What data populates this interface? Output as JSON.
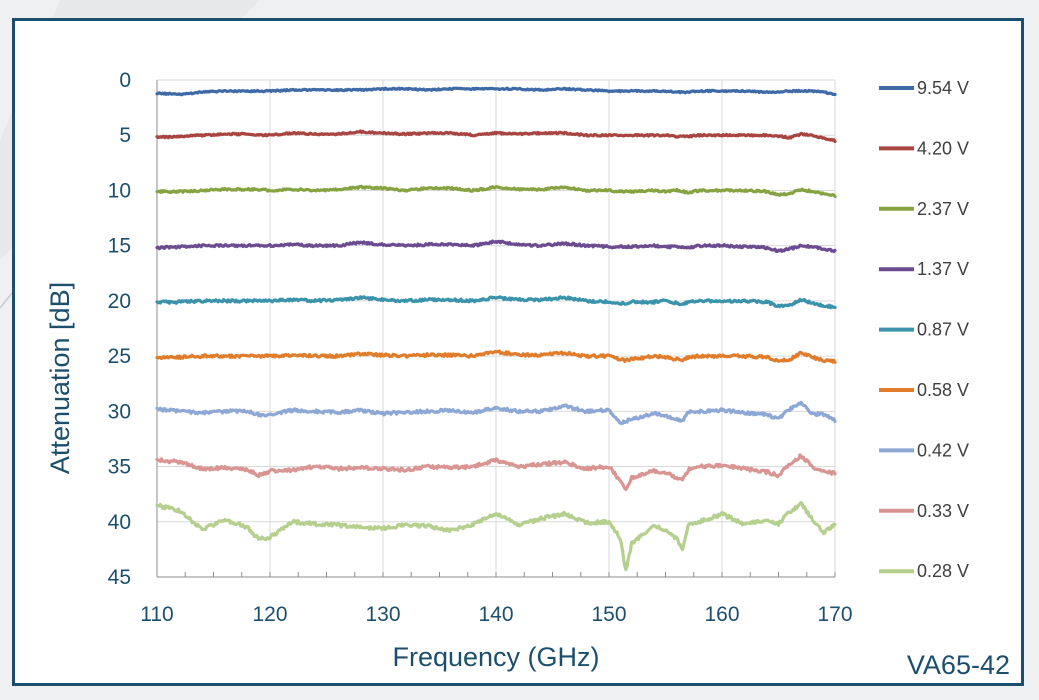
{
  "chart_data": {
    "type": "line",
    "title": "",
    "xlabel": "Frequency (GHz)",
    "ylabel": "Attenuation [dB]",
    "xlim": [
      110,
      170
    ],
    "ylim": [
      0,
      45
    ],
    "y_inverted": true,
    "x_ticks": [
      110,
      120,
      130,
      140,
      150,
      160,
      170
    ],
    "y_ticks": [
      0,
      5,
      10,
      15,
      20,
      25,
      30,
      35,
      40,
      45
    ],
    "grid": true,
    "legend_position": "right",
    "x": [
      110,
      112,
      114,
      116,
      118,
      119,
      120,
      122,
      124,
      126,
      128,
      130,
      132,
      134,
      136,
      138,
      140,
      142,
      144,
      146,
      148,
      150,
      151,
      151.5,
      152,
      154,
      155,
      156,
      156.5,
      157,
      158,
      160,
      162,
      164,
      165,
      166,
      167,
      168,
      169,
      170
    ],
    "series": [
      {
        "name": "9.54 V",
        "color": "#3e6aa6",
        "values": [
          1.2,
          1.3,
          1.1,
          1.0,
          1.0,
          1.0,
          1.0,
          0.9,
          0.9,
          0.9,
          0.9,
          0.8,
          0.8,
          0.9,
          0.8,
          0.8,
          0.8,
          0.8,
          0.9,
          0.8,
          0.9,
          1.0,
          1.0,
          1.0,
          1.0,
          1.0,
          1.0,
          1.1,
          1.1,
          1.1,
          1.0,
          1.0,
          1.0,
          1.1,
          1.1,
          1.0,
          1.0,
          1.0,
          1.1,
          1.3
        ]
      },
      {
        "name": "4.20 V",
        "color": "#a84541",
        "values": [
          5.2,
          5.1,
          5.0,
          4.9,
          4.9,
          5.0,
          5.0,
          4.8,
          4.9,
          4.9,
          4.7,
          4.8,
          4.9,
          4.8,
          4.8,
          5.0,
          4.8,
          4.9,
          4.8,
          4.8,
          5.0,
          5.0,
          5.0,
          5.0,
          5.0,
          5.0,
          5.0,
          5.1,
          5.1,
          5.1,
          5.0,
          5.0,
          5.0,
          5.0,
          5.1,
          5.2,
          4.9,
          5.0,
          5.3,
          5.5
        ]
      },
      {
        "name": "2.37 V",
        "color": "#86a342",
        "values": [
          10.1,
          10.1,
          10.0,
          9.9,
          9.9,
          9.9,
          10.0,
          9.9,
          10.0,
          9.9,
          9.7,
          9.8,
          10.0,
          9.8,
          9.8,
          10.0,
          9.7,
          9.9,
          9.9,
          9.7,
          10.0,
          10.0,
          10.1,
          10.1,
          10.1,
          10.0,
          10.1,
          10.0,
          10.1,
          10.2,
          10.0,
          10.0,
          10.0,
          10.1,
          10.4,
          10.3,
          9.9,
          10.1,
          10.3,
          10.5
        ]
      },
      {
        "name": "1.37 V",
        "color": "#6c4b91",
        "values": [
          15.2,
          15.1,
          15.0,
          15.0,
          15.0,
          15.0,
          15.0,
          14.9,
          15.0,
          15.0,
          14.7,
          14.9,
          15.0,
          14.9,
          14.9,
          15.0,
          14.6,
          14.9,
          15.0,
          14.8,
          15.0,
          15.1,
          15.1,
          15.1,
          15.1,
          15.0,
          15.1,
          15.1,
          15.1,
          15.2,
          15.0,
          15.0,
          15.1,
          15.2,
          15.5,
          15.3,
          15.0,
          15.1,
          15.3,
          15.5
        ]
      },
      {
        "name": "0.87 V",
        "color": "#3a93ab",
        "values": [
          20.1,
          20.1,
          20.0,
          20.0,
          20.0,
          20.0,
          20.0,
          19.9,
          20.0,
          19.9,
          19.7,
          19.9,
          20.0,
          19.9,
          19.9,
          20.0,
          19.7,
          19.9,
          19.9,
          19.7,
          20.0,
          20.1,
          20.2,
          20.2,
          20.1,
          20.1,
          20.0,
          20.2,
          20.3,
          20.1,
          20.0,
          20.0,
          20.0,
          20.1,
          20.5,
          20.4,
          19.9,
          20.2,
          20.4,
          20.6
        ]
      },
      {
        "name": "0.58 V",
        "color": "#e07c2a",
        "values": [
          25.1,
          25.1,
          25.0,
          25.0,
          25.0,
          25.0,
          25.0,
          24.9,
          25.0,
          25.0,
          24.8,
          24.9,
          25.0,
          24.9,
          24.9,
          25.0,
          24.6,
          24.9,
          24.9,
          24.7,
          25.0,
          25.0,
          25.3,
          25.4,
          25.3,
          25.0,
          25.1,
          25.3,
          25.4,
          25.1,
          25.0,
          25.0,
          25.0,
          25.1,
          25.4,
          25.3,
          24.7,
          25.1,
          25.4,
          25.5
        ]
      },
      {
        "name": "0.42 V",
        "color": "#8ea8d6",
        "values": [
          29.8,
          30.0,
          30.1,
          30.0,
          30.0,
          30.3,
          30.3,
          29.9,
          30.0,
          30.1,
          29.9,
          30.2,
          30.1,
          30.0,
          29.9,
          30.1,
          29.7,
          30.0,
          30.0,
          29.5,
          30.0,
          29.9,
          31.0,
          30.9,
          30.7,
          30.2,
          30.4,
          30.7,
          30.9,
          30.0,
          30.0,
          29.9,
          30.1,
          30.3,
          30.7,
          29.8,
          29.3,
          30.2,
          30.3,
          30.8
        ]
      },
      {
        "name": "0.33 V",
        "color": "#d99592",
        "values": [
          34.4,
          34.6,
          35.2,
          35.1,
          35.3,
          35.8,
          35.4,
          35.3,
          35.0,
          35.2,
          35.1,
          35.2,
          35.3,
          35.0,
          35.1,
          35.0,
          34.4,
          35.0,
          34.8,
          34.6,
          35.2,
          35.0,
          36.3,
          37.2,
          36.0,
          35.4,
          35.5,
          36.1,
          36.2,
          35.3,
          35.0,
          34.9,
          35.2,
          35.5,
          35.8,
          34.8,
          34.0,
          35.0,
          35.5,
          35.6
        ]
      },
      {
        "name": "0.28 V",
        "color": "#b5cf8f",
        "values": [
          38.5,
          39.0,
          40.7,
          39.8,
          40.5,
          41.6,
          41.4,
          40.0,
          40.2,
          40.3,
          40.5,
          40.6,
          40.3,
          40.4,
          40.8,
          40.2,
          39.2,
          40.3,
          39.7,
          39.3,
          40.1,
          40.0,
          41.5,
          44.5,
          42.0,
          40.3,
          40.8,
          41.5,
          42.5,
          40.3,
          40.0,
          39.3,
          40.2,
          39.8,
          40.2,
          39.1,
          38.4,
          39.8,
          41.0,
          40.2
        ]
      }
    ]
  },
  "watermark": "VA65-42"
}
